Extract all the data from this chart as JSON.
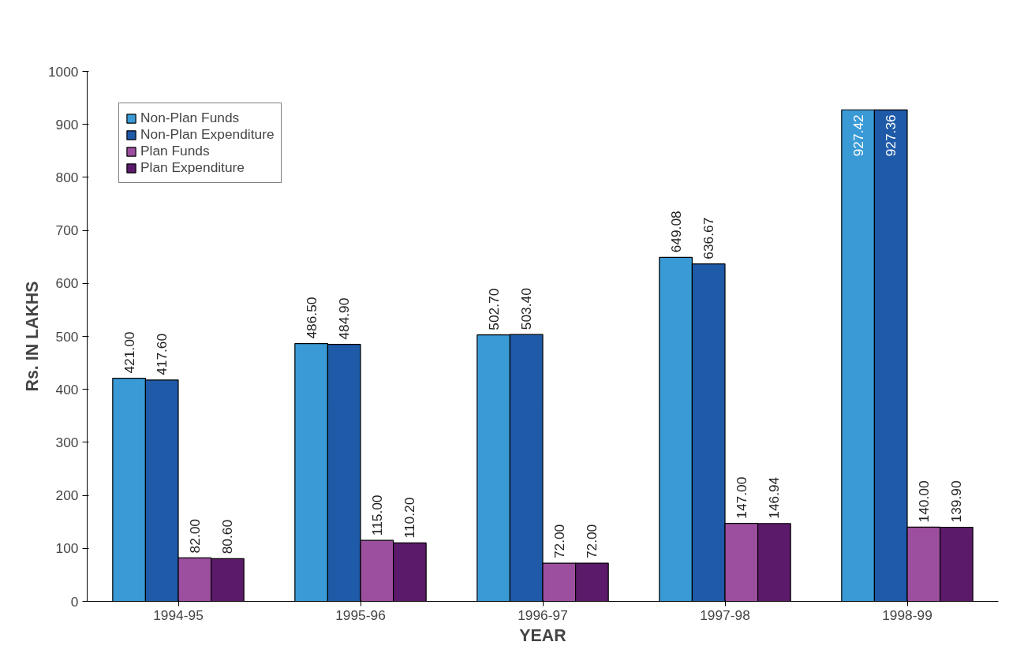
{
  "chart_data": {
    "type": "bar",
    "xlabel": "YEAR",
    "ylabel": "Rs. IN LAKHS",
    "categories": [
      "1994-95",
      "1995-96",
      "1996-97",
      "1997-98",
      "1998-99"
    ],
    "series": [
      {
        "name": "Non-Plan Funds",
        "color": "#3a9ad6",
        "values": [
          421.0,
          486.5,
          502.7,
          649.08,
          927.42
        ],
        "value_labels": [
          "421.00",
          "486.50",
          "502.70",
          "649.08",
          "927.42"
        ]
      },
      {
        "name": "Non-Plan Expenditure",
        "color": "#1f5aa8",
        "values": [
          417.6,
          484.9,
          503.4,
          636.67,
          927.36
        ],
        "value_labels": [
          "417.60",
          "484.90",
          "503.40",
          "636.67",
          "927.36"
        ]
      },
      {
        "name": "Plan Funds",
        "color": "#9b4f9e",
        "values": [
          82.0,
          115.0,
          72.0,
          147.0,
          140.0
        ],
        "value_labels": [
          "82.00",
          "115.00",
          "72.00",
          "147.00",
          "140.00"
        ]
      },
      {
        "name": "Plan Expenditure",
        "color": "#5c1a6a",
        "values": [
          80.6,
          110.2,
          72.0,
          146.94,
          139.9
        ],
        "value_labels": [
          "80.60",
          "110.20",
          "72.00",
          "146.94",
          "139.90"
        ]
      }
    ],
    "ylim": [
      0,
      1000
    ],
    "yticks": [
      0,
      100,
      200,
      300,
      400,
      500,
      600,
      700,
      800,
      900,
      1000
    ],
    "grid": false,
    "legend": "top left"
  }
}
